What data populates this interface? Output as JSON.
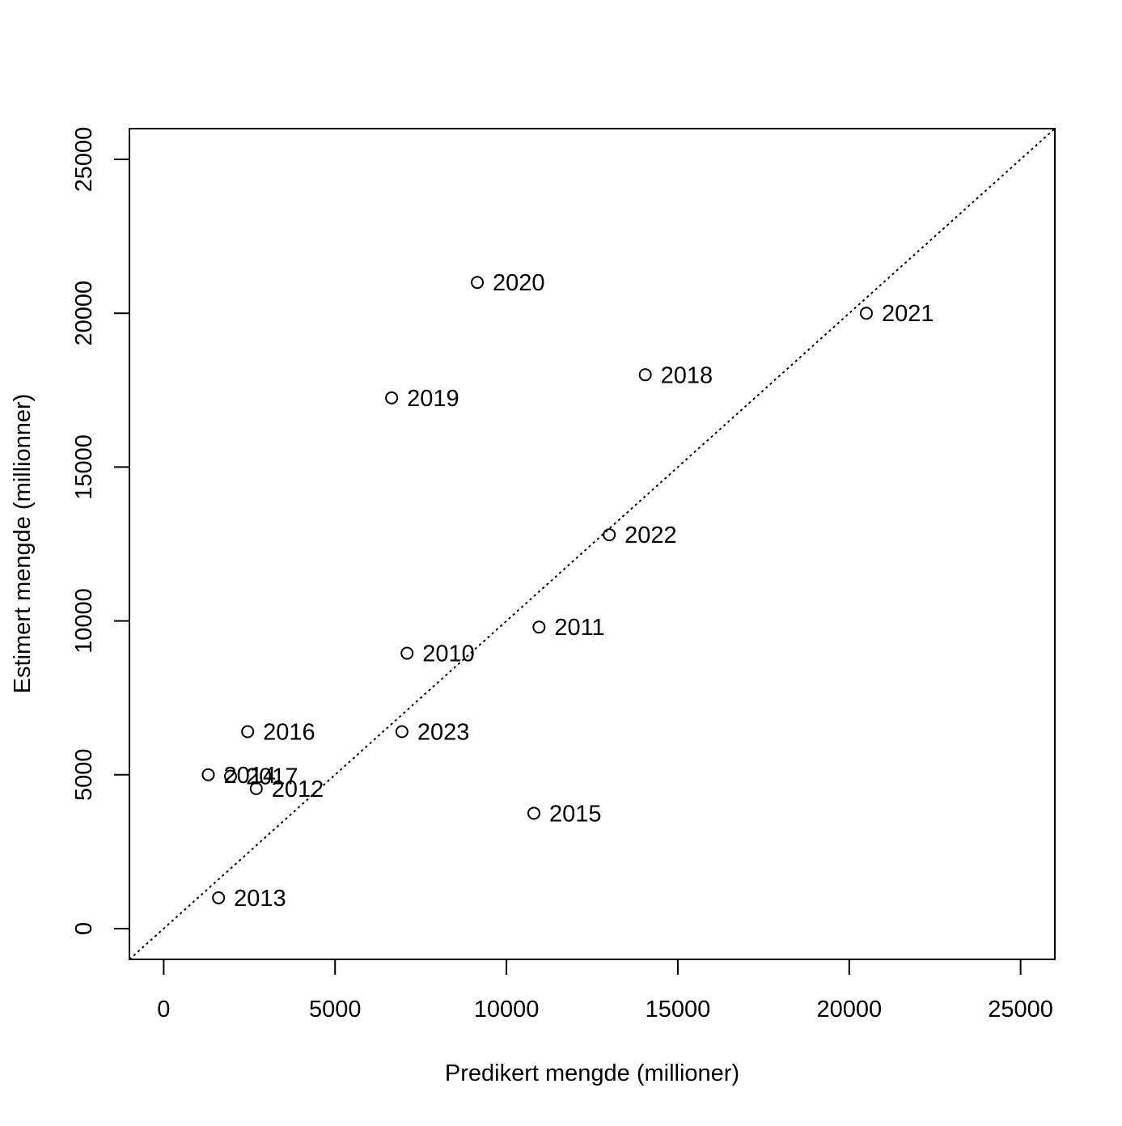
{
  "chart_data": {
    "type": "scatter",
    "title": "",
    "xlabel": "Predikert mengde (millioner)",
    "ylabel": "Estimert mengde (millionner)",
    "xlim": [
      -1000,
      26000
    ],
    "ylim": [
      -1000,
      26000
    ],
    "x_ticks": [
      0,
      5000,
      10000,
      15000,
      20000,
      25000
    ],
    "y_ticks": [
      0,
      5000,
      10000,
      15000,
      20000,
      25000
    ],
    "x_tick_labels": [
      "0",
      "5000",
      "10000",
      "15000",
      "20000",
      "25000"
    ],
    "y_tick_labels": [
      "0",
      "5000",
      "10000",
      "15000",
      "20000",
      "25000"
    ],
    "grid": false,
    "reference_line": {
      "type": "identity",
      "style": "dotted"
    },
    "points": [
      {
        "label": "2010",
        "x": 7100,
        "y": 8950
      },
      {
        "label": "2011",
        "x": 10950,
        "y": 9800
      },
      {
        "label": "2012",
        "x": 2700,
        "y": 4550
      },
      {
        "label": "2013",
        "x": 1600,
        "y": 1000
      },
      {
        "label": "2014",
        "x": 1300,
        "y": 5000
      },
      {
        "label": "2015",
        "x": 10800,
        "y": 3750
      },
      {
        "label": "2016",
        "x": 2450,
        "y": 6400
      },
      {
        "label": "2017",
        "x": 1950,
        "y": 4950
      },
      {
        "label": "2018",
        "x": 14050,
        "y": 18000
      },
      {
        "label": "2019",
        "x": 6650,
        "y": 17250
      },
      {
        "label": "2020",
        "x": 9150,
        "y": 21000
      },
      {
        "label": "2021",
        "x": 20500,
        "y": 20000
      },
      {
        "label": "2022",
        "x": 13000,
        "y": 12800
      },
      {
        "label": "2023",
        "x": 6950,
        "y": 6400
      }
    ]
  }
}
